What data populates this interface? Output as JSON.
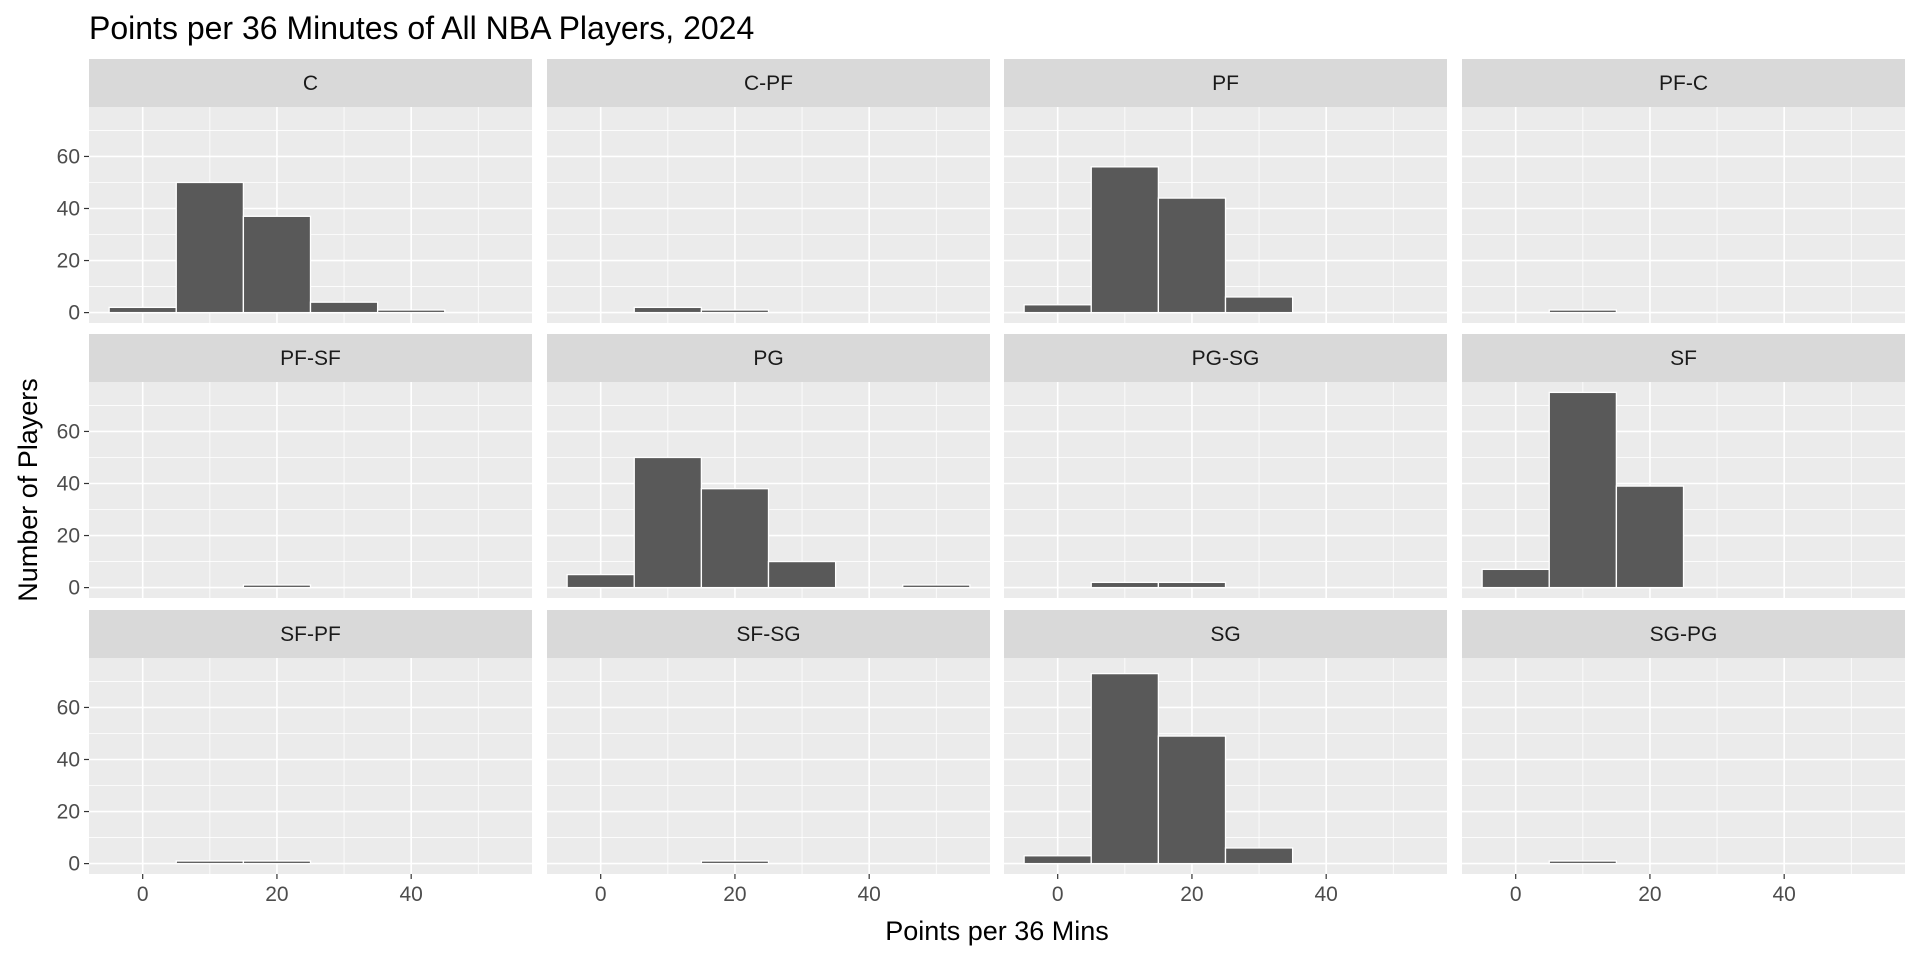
{
  "chart_data": {
    "type": "bar",
    "title": "Points per 36 Minutes of All NBA Players, 2024",
    "xlabel": "Points per 36 Mins",
    "ylabel": "Number of Players",
    "bin_width": 10,
    "bin_centers": [
      0,
      10,
      20,
      30,
      40,
      50
    ],
    "xlim": [
      -8,
      58
    ],
    "ylim": [
      -4,
      79
    ],
    "x_ticks": [
      0,
      20,
      40
    ],
    "y_ticks": [
      0,
      20,
      40,
      60
    ],
    "grid": true,
    "facets": [
      {
        "label": "C",
        "values": [
          2,
          50,
          37,
          4,
          1,
          0
        ]
      },
      {
        "label": "C-PF",
        "values": [
          0,
          2,
          1,
          0,
          0,
          0
        ]
      },
      {
        "label": "PF",
        "values": [
          3,
          56,
          44,
          6,
          0,
          0
        ]
      },
      {
        "label": "PF-C",
        "values": [
          0,
          1,
          0,
          0,
          0,
          0
        ]
      },
      {
        "label": "PF-SF",
        "values": [
          0,
          0,
          1,
          0,
          0,
          0
        ]
      },
      {
        "label": "PG",
        "values": [
          5,
          50,
          38,
          10,
          0,
          1
        ]
      },
      {
        "label": "PG-SG",
        "values": [
          0,
          2,
          2,
          0,
          0,
          0
        ]
      },
      {
        "label": "SF",
        "values": [
          7,
          75,
          39,
          0,
          0,
          0
        ]
      },
      {
        "label": "SF-PF",
        "values": [
          0,
          1,
          1,
          0,
          0,
          0
        ]
      },
      {
        "label": "SF-SG",
        "values": [
          0,
          0,
          1,
          0,
          0,
          0
        ]
      },
      {
        "label": "SG",
        "values": [
          3,
          73,
          49,
          6,
          0,
          0
        ]
      },
      {
        "label": "SG-PG",
        "values": [
          0,
          1,
          0,
          0,
          0,
          0
        ]
      }
    ],
    "colors": {
      "bar_fill": "#595959",
      "bar_stroke": "#ffffff",
      "panel_bg": "#ebebeb",
      "strip_bg": "#d9d9d9",
      "grid_major": "#ffffff",
      "tick_text": "#4d4d4d",
      "tick_mark": "#333333"
    }
  }
}
